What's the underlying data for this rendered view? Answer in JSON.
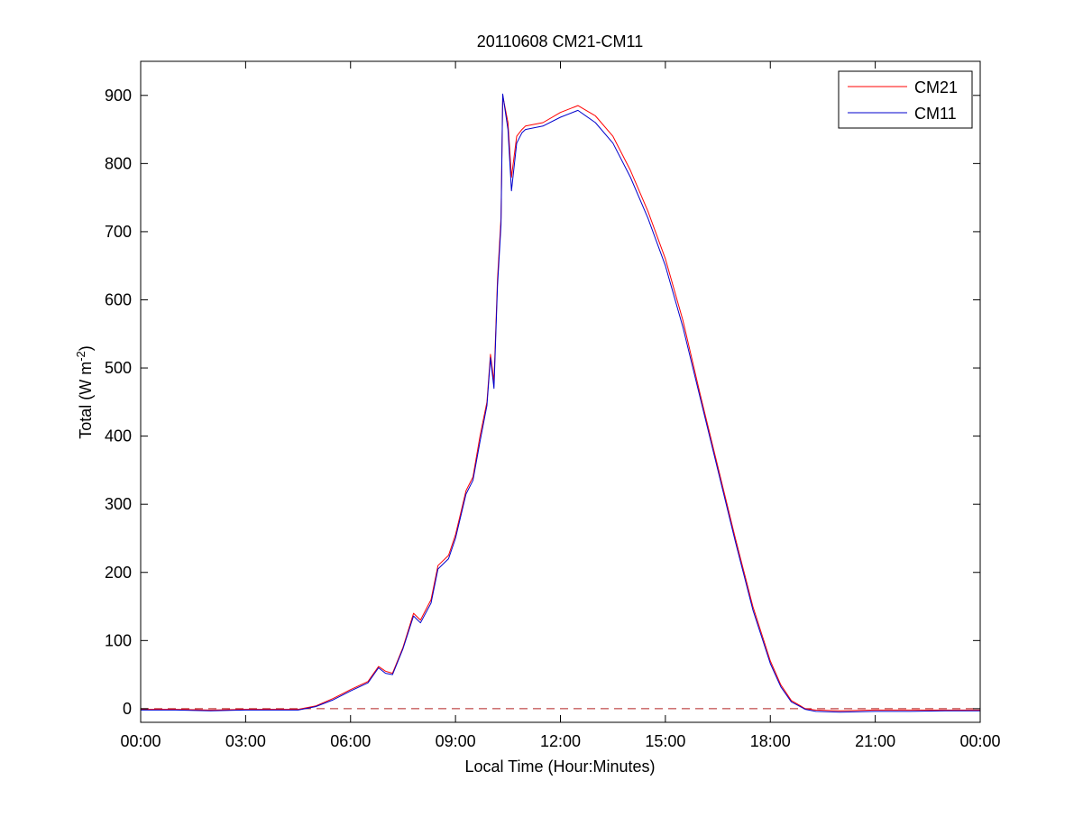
{
  "chart_data": {
    "type": "line",
    "title": "20110608 CM21-CM11",
    "xlabel": "Local Time (Hour:Minutes)",
    "ylabel": {
      "main": "Total (W m",
      "superscript": "-2",
      "close": ")"
    },
    "xlim": [
      0,
      24
    ],
    "ylim": [
      -20,
      950
    ],
    "x_ticks": [
      0,
      3,
      6,
      9,
      12,
      15,
      18,
      21,
      24
    ],
    "x_tick_labels": [
      "00:00",
      "03:00",
      "06:00",
      "09:00",
      "12:00",
      "15:00",
      "18:00",
      "21:00",
      "00:00"
    ],
    "y_ticks": [
      0,
      100,
      200,
      300,
      400,
      500,
      600,
      700,
      800,
      900
    ],
    "y_tick_labels": [
      "0",
      "100",
      "200",
      "300",
      "400",
      "500",
      "600",
      "700",
      "800",
      "900"
    ],
    "grid": false,
    "legend_position": "top-right",
    "reference_line": {
      "y": 0,
      "style": "dashed",
      "color": "#b22222"
    },
    "series": [
      {
        "name": "CM21",
        "color": "#ff0000",
        "x": [
          0,
          1,
          2,
          3,
          4,
          4.5,
          5,
          5.5,
          6,
          6.5,
          6.8,
          7,
          7.2,
          7.5,
          7.8,
          8,
          8.3,
          8.5,
          8.8,
          9,
          9.3,
          9.5,
          9.7,
          9.9,
          10,
          10.1,
          10.2,
          10.3,
          10.35,
          10.5,
          10.6,
          10.75,
          10.9,
          11,
          11.5,
          12,
          12.5,
          13,
          13.5,
          14,
          14.5,
          15,
          15.5,
          16,
          16.5,
          17,
          17.5,
          18,
          18.3,
          18.6,
          19,
          19.3,
          20,
          21,
          22,
          23,
          24
        ],
        "y": [
          -1,
          -1,
          -2,
          -1,
          -1,
          -1,
          4,
          15,
          28,
          40,
          62,
          55,
          52,
          90,
          140,
          130,
          160,
          210,
          225,
          255,
          320,
          340,
          400,
          450,
          520,
          480,
          630,
          720,
          900,
          860,
          780,
          840,
          850,
          855,
          860,
          875,
          885,
          870,
          840,
          790,
          730,
          660,
          570,
          460,
          355,
          250,
          150,
          70,
          35,
          12,
          0,
          -2,
          -3,
          -2,
          -2,
          -2,
          -2
        ]
      },
      {
        "name": "CM11",
        "color": "#0000cc",
        "x": [
          0,
          1,
          2,
          3,
          4,
          4.5,
          5,
          5.5,
          6,
          6.5,
          6.8,
          7,
          7.2,
          7.5,
          7.8,
          8,
          8.3,
          8.5,
          8.8,
          9,
          9.3,
          9.5,
          9.7,
          9.9,
          10,
          10.1,
          10.2,
          10.3,
          10.35,
          10.5,
          10.6,
          10.75,
          10.9,
          11,
          11.5,
          12,
          12.5,
          13,
          13.5,
          14,
          14.5,
          15,
          15.5,
          16,
          16.5,
          17,
          17.5,
          18,
          18.3,
          18.6,
          19,
          19.3,
          20,
          21,
          22,
          23,
          24
        ],
        "y": [
          -2,
          -2,
          -3,
          -2,
          -2,
          -2,
          3,
          13,
          26,
          38,
          60,
          52,
          50,
          88,
          136,
          126,
          155,
          205,
          220,
          250,
          315,
          335,
          392,
          445,
          515,
          470,
          620,
          710,
          902,
          850,
          760,
          830,
          845,
          850,
          855,
          868,
          878,
          860,
          830,
          780,
          720,
          650,
          560,
          455,
          350,
          245,
          145,
          66,
          32,
          10,
          -1,
          -4,
          -5,
          -4,
          -4,
          -3,
          -3
        ]
      }
    ]
  }
}
